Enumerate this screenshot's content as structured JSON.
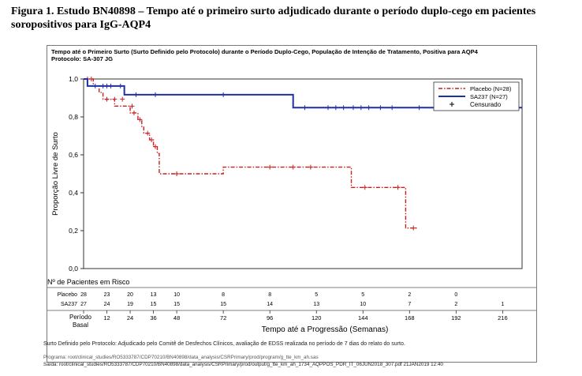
{
  "figure_caption": "Figura 1. Estudo BN40898 – Tempo até o primeiro surto adjudicado durante o período duplo-cego em pacientes soropositivos para IgG-AQP4",
  "chart_title_line1": "Tempo até o Primeiro Surto (Surto Definido pelo Protocolo) durante o Período Duplo-Cego, População de Intenção de Tratamento, Positiva para AQP4",
  "chart_title_line2": "Protocolo: SA-307 JG",
  "chart_data": {
    "type": "line",
    "step": true,
    "xlabel": "Tempo até a Progressão (Semanas)",
    "ylabel": "Proporção Livre de Surto",
    "xlim": [
      0,
      226
    ],
    "ylim": [
      0,
      1
    ],
    "xticks": [
      0,
      12,
      24,
      36,
      48,
      72,
      96,
      120,
      144,
      168,
      192,
      216
    ],
    "xtick_labels": [
      "Período Basal",
      "12",
      "24",
      "36",
      "48",
      "72",
      "96",
      "120",
      "144",
      "168",
      "192",
      "216"
    ],
    "yticks": [
      0,
      0.2,
      0.4,
      0.6,
      0.8,
      1.0
    ],
    "ytick_labels": [
      "0,0",
      "0,2",
      "0,4",
      "0,6",
      "0,8",
      "1,0"
    ],
    "legend_position": "top-right",
    "legend_censor_label": "Censurado",
    "series": [
      {
        "name": "Placebo (N=28)",
        "color": "#cc1f1f",
        "dash": true,
        "steps": [
          [
            0,
            1.0
          ],
          [
            5,
            0.964
          ],
          [
            8,
            0.929
          ],
          [
            10,
            0.893
          ],
          [
            16,
            0.857
          ],
          [
            24,
            0.821
          ],
          [
            28,
            0.786
          ],
          [
            30,
            0.75
          ],
          [
            31,
            0.714
          ],
          [
            34,
            0.679
          ],
          [
            36,
            0.643
          ],
          [
            38,
            0.607
          ],
          [
            39,
            0.5
          ],
          [
            72,
            0.535
          ],
          [
            138,
            0.428
          ],
          [
            164,
            0.428
          ],
          [
            166,
            0.214
          ],
          [
            172,
            0.214
          ]
        ],
        "censored": [
          [
            2,
            1.0
          ],
          [
            4,
            1.0
          ],
          [
            12,
            0.893
          ],
          [
            16,
            0.893
          ],
          [
            20,
            0.893
          ],
          [
            25,
            0.857
          ],
          [
            26,
            0.821
          ],
          [
            29,
            0.786
          ],
          [
            33,
            0.714
          ],
          [
            35,
            0.679
          ],
          [
            37,
            0.643
          ],
          [
            48,
            0.5
          ],
          [
            96,
            0.535
          ],
          [
            108,
            0.535
          ],
          [
            117,
            0.535
          ],
          [
            145,
            0.428
          ],
          [
            162,
            0.428
          ],
          [
            170,
            0.214
          ]
        ]
      },
      {
        "name": "SA237 (N=27)",
        "color": "#1f2fa8",
        "dash": false,
        "steps": [
          [
            0,
            1.0
          ],
          [
            2,
            0.963
          ],
          [
            21,
            0.926
          ],
          [
            21,
            0.917
          ],
          [
            108,
            0.917
          ],
          [
            108,
            0.849
          ],
          [
            226,
            0.849
          ]
        ],
        "censored": [
          [
            6,
            0.963
          ],
          [
            10,
            0.963
          ],
          [
            12,
            0.963
          ],
          [
            14,
            0.963
          ],
          [
            19,
            0.963
          ],
          [
            27,
            0.917
          ],
          [
            37,
            0.917
          ],
          [
            72,
            0.917
          ],
          [
            114,
            0.849
          ],
          [
            126,
            0.849
          ],
          [
            130,
            0.849
          ],
          [
            134,
            0.849
          ],
          [
            139,
            0.849
          ],
          [
            143,
            0.849
          ],
          [
            147,
            0.849
          ],
          [
            153,
            0.849
          ],
          [
            159,
            0.849
          ],
          [
            173,
            0.849
          ],
          [
            192,
            0.849
          ],
          [
            216,
            0.849
          ]
        ]
      }
    ]
  },
  "risk_table": {
    "title": "Nº de Pacientes em Risco",
    "timepoints": [
      0,
      12,
      24,
      36,
      48,
      72,
      96,
      120,
      144,
      168,
      192,
      216
    ],
    "rows": [
      {
        "label": "Placebo",
        "values": [
          "28",
          "23",
          "20",
          "13",
          "10",
          "8",
          "8",
          "5",
          "5",
          "2",
          "0",
          ""
        ]
      },
      {
        "label": "SA237",
        "values": [
          "27",
          "24",
          "19",
          "15",
          "15",
          "15",
          "14",
          "13",
          "10",
          "7",
          "2",
          "1"
        ]
      }
    ]
  },
  "footnote": "Surto Definido pelo Protocolo: Adjudicado pelo Comitê de Desfechos Clínicos, avaliação de EDSS realizada no período de 7 dias do relato do surto.",
  "program_line": "Programa: root/clinical_studies/RO5333787/CDP70210/BN40898/data_analysis/CSRPrimary/prod/program/g_tte_km_ah.sas",
  "output_line": "Saída: root/clinical_studies/RO5333787/CDP70210/BN40898/data_analysis/CSRPrimary/prod/output/g_tte_km_ah_1734_AQPPOS_PDR_IT_06JUN2018_307.pdf 21JAN2019 12:40"
}
